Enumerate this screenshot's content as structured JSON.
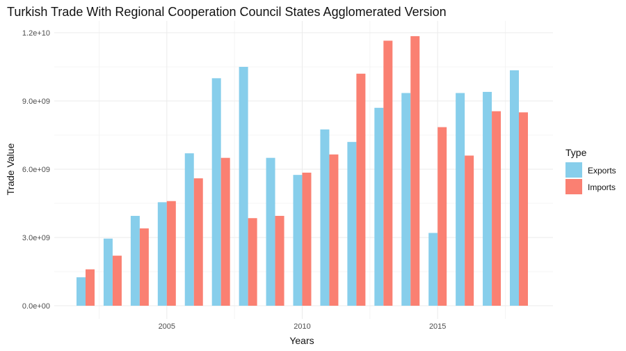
{
  "chart_data": {
    "type": "bar",
    "title": "Turkish Trade With Regional Cooperation Council States Agglomerated Version",
    "xlabel": "Years",
    "ylabel": "Trade Value",
    "categories": [
      2002,
      2003,
      2004,
      2005,
      2006,
      2007,
      2008,
      2009,
      2010,
      2011,
      2012,
      2013,
      2014,
      2015,
      2016,
      2017,
      2018
    ],
    "x_ticks": [
      2005,
      2010,
      2015
    ],
    "x_tick_labels": [
      "2005",
      "2010",
      "2015"
    ],
    "y_ticks": [
      0,
      3000000000,
      6000000000,
      9000000000,
      12000000000
    ],
    "y_tick_labels": [
      "0.0e+00",
      "3.0e+09",
      "6.0e+09",
      "9.0e+09",
      "1.2e+10"
    ],
    "ylim": [
      0,
      12400000000
    ],
    "grid": true,
    "legend": {
      "title": "Type",
      "position": "right"
    },
    "series": [
      {
        "name": "Exports",
        "color": "#87CEEB",
        "values": [
          1250000000,
          2950000000,
          3950000000,
          4550000000,
          6700000000,
          10000000000,
          10500000000,
          6500000000,
          5750000000,
          7750000000,
          7200000000,
          8700000000,
          9350000000,
          3200000000,
          9350000000,
          9400000000,
          10350000000
        ]
      },
      {
        "name": "Imports",
        "color": "#FA8072",
        "values": [
          1600000000,
          2200000000,
          3400000000,
          4600000000,
          5600000000,
          6500000000,
          3850000000,
          3950000000,
          5850000000,
          6650000000,
          10200000000,
          11650000000,
          11850000000,
          7850000000,
          6600000000,
          8550000000,
          8500000000
        ]
      }
    ]
  }
}
